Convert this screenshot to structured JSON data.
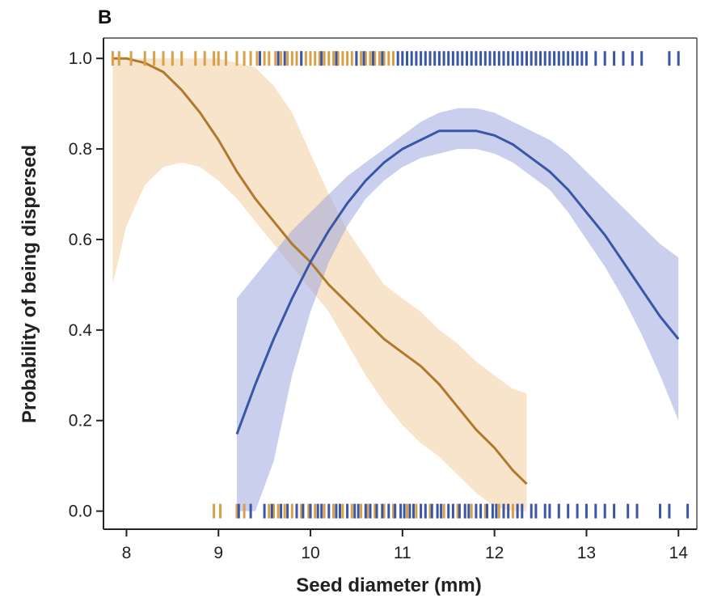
{
  "panel_label": "B",
  "chart_data": {
    "type": "line",
    "xlabel": "Seed diameter (mm)",
    "ylabel": "Probability of being dispersed",
    "xlim": [
      7.75,
      14.2
    ],
    "ylim": [
      -0.04,
      1.045
    ],
    "x_ticks": [
      "8",
      "9",
      "10",
      "11",
      "12",
      "13",
      "14"
    ],
    "y_ticks": [
      "0.0",
      "0.2",
      "0.4",
      "0.6",
      "0.8",
      "1.0"
    ],
    "grid": false,
    "legend": "none",
    "series": [
      {
        "color": "#B07A2E",
        "band_color": "#F0C48A",
        "x": [
          7.85,
          8.0,
          8.2,
          8.4,
          8.6,
          8.8,
          9.0,
          9.2,
          9.4,
          9.6,
          9.8,
          10.0,
          10.2,
          10.4,
          10.6,
          10.8,
          11.0,
          11.2,
          11.4,
          11.6,
          11.8,
          12.0,
          12.2,
          12.35
        ],
        "y": [
          1.0,
          1.0,
          0.99,
          0.97,
          0.93,
          0.88,
          0.82,
          0.75,
          0.69,
          0.64,
          0.59,
          0.55,
          0.5,
          0.46,
          0.42,
          0.38,
          0.35,
          0.32,
          0.28,
          0.23,
          0.18,
          0.14,
          0.09,
          0.06
        ],
        "lower": [
          0.5,
          0.63,
          0.72,
          0.76,
          0.77,
          0.76,
          0.73,
          0.69,
          0.64,
          0.59,
          0.54,
          0.49,
          0.44,
          0.37,
          0.3,
          0.24,
          0.19,
          0.15,
          0.12,
          0.08,
          0.04,
          0.01,
          0.0,
          0.0
        ],
        "upper": [
          1.0,
          1.0,
          1.0,
          1.0,
          1.0,
          1.0,
          1.0,
          0.99,
          0.98,
          0.94,
          0.88,
          0.79,
          0.7,
          0.62,
          0.56,
          0.5,
          0.47,
          0.44,
          0.4,
          0.37,
          0.33,
          0.3,
          0.27,
          0.26
        ]
      },
      {
        "color": "#3A56A7",
        "band_color": "#9FA8DF",
        "x": [
          9.2,
          9.4,
          9.6,
          9.8,
          10.0,
          10.2,
          10.4,
          10.6,
          10.8,
          11.0,
          11.2,
          11.4,
          11.6,
          11.8,
          12.0,
          12.2,
          12.4,
          12.6,
          12.8,
          13.0,
          13.2,
          13.4,
          13.6,
          13.8,
          14.0
        ],
        "y": [
          0.17,
          0.28,
          0.38,
          0.47,
          0.55,
          0.62,
          0.68,
          0.73,
          0.77,
          0.8,
          0.82,
          0.84,
          0.84,
          0.84,
          0.83,
          0.81,
          0.78,
          0.75,
          0.71,
          0.66,
          0.61,
          0.55,
          0.49,
          0.43,
          0.38
        ],
        "lower": [
          0.0,
          0.0,
          0.11,
          0.3,
          0.44,
          0.55,
          0.63,
          0.69,
          0.73,
          0.76,
          0.78,
          0.79,
          0.8,
          0.8,
          0.79,
          0.77,
          0.74,
          0.71,
          0.66,
          0.6,
          0.54,
          0.47,
          0.39,
          0.3,
          0.2
        ],
        "upper": [
          0.47,
          0.52,
          0.57,
          0.62,
          0.66,
          0.7,
          0.74,
          0.77,
          0.8,
          0.83,
          0.86,
          0.88,
          0.89,
          0.89,
          0.88,
          0.86,
          0.84,
          0.82,
          0.79,
          0.75,
          0.71,
          0.67,
          0.63,
          0.59,
          0.56
        ]
      }
    ],
    "rug": {
      "top_orange": [
        7.85,
        7.92,
        8.05,
        8.2,
        8.3,
        8.4,
        8.5,
        8.6,
        8.75,
        8.85,
        8.95,
        9.0,
        9.08,
        9.2,
        9.28,
        9.35,
        9.42,
        9.5,
        9.55,
        9.62,
        9.68,
        9.75,
        9.8,
        9.85,
        9.9,
        9.95,
        10.0,
        10.05,
        10.1,
        10.15,
        10.2,
        10.25,
        10.3,
        10.35,
        10.4,
        10.45,
        10.5,
        10.55,
        10.6,
        10.65,
        10.7,
        10.75,
        10.8,
        10.85,
        10.9
      ],
      "top_blue": [
        9.45,
        9.65,
        9.72,
        9.9,
        10.12,
        10.28,
        10.5,
        10.58,
        10.68,
        10.78,
        10.95,
        11.0,
        11.05,
        11.1,
        11.15,
        11.2,
        11.25,
        11.3,
        11.35,
        11.4,
        11.45,
        11.5,
        11.55,
        11.6,
        11.65,
        11.7,
        11.75,
        11.8,
        11.85,
        11.9,
        11.95,
        12.0,
        12.05,
        12.1,
        12.15,
        12.2,
        12.25,
        12.3,
        12.35,
        12.4,
        12.45,
        12.5,
        12.55,
        12.6,
        12.65,
        12.7,
        12.75,
        12.8,
        12.85,
        12.9,
        12.95,
        13.0,
        13.1,
        13.2,
        13.3,
        13.4,
        13.5,
        13.6,
        13.9,
        14.0
      ],
      "bottom_orange": [
        8.95,
        9.02,
        9.2,
        9.28,
        9.55,
        9.6,
        9.65,
        9.72,
        9.8,
        9.9,
        9.98,
        10.05,
        10.15,
        10.25,
        10.35,
        10.45,
        10.55,
        10.62,
        10.7,
        10.8,
        10.9,
        11.05,
        11.15,
        11.3,
        11.45,
        11.6,
        11.75,
        11.9,
        12.05,
        12.2
      ],
      "bottom_blue": [
        9.22,
        9.35,
        9.5,
        9.58,
        9.68,
        9.75,
        9.85,
        9.92,
        10.0,
        10.08,
        10.12,
        10.2,
        10.28,
        10.32,
        10.4,
        10.48,
        10.52,
        10.6,
        10.65,
        10.72,
        10.78,
        10.85,
        10.92,
        10.98,
        11.02,
        11.08,
        11.12,
        11.2,
        11.25,
        11.32,
        11.38,
        11.42,
        11.5,
        11.55,
        11.62,
        11.68,
        11.72,
        11.8,
        11.85,
        11.92,
        11.98,
        12.02,
        12.1,
        12.15,
        12.25,
        12.3,
        12.4,
        12.45,
        12.55,
        12.6,
        12.7,
        12.8,
        12.9,
        13.0,
        13.1,
        13.2,
        13.3,
        13.45,
        13.55,
        13.8,
        13.9,
        14.1
      ]
    }
  }
}
